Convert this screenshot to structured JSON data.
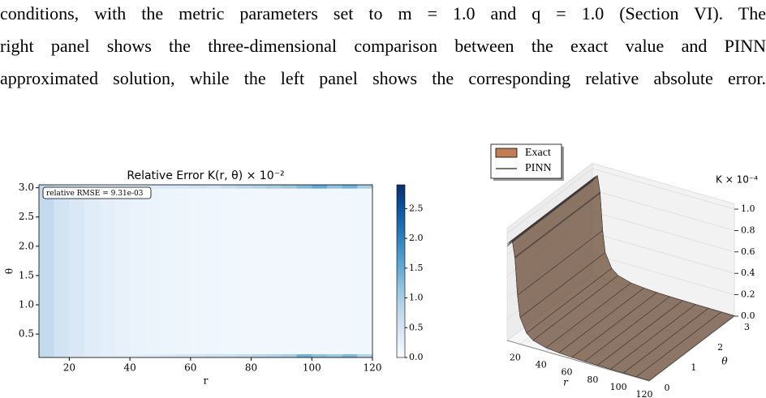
{
  "text": {
    "lines": [
      "conditions, with the metric parameters set to m = 1.0 and q = 1.0 (Section VI). The",
      "right panel shows the three-dimensional comparison between the exact value and PINN",
      "approximated solution, while the left panel shows the corresponding relative absolute error."
    ]
  },
  "chart_data": [
    {
      "type": "heatmap",
      "title": "Relative Error K(r, θ) × 10⁻²",
      "annotation": "relative RMSE = 9.31e-03",
      "xlabel": "r",
      "ylabel": "θ",
      "colormap": "Blues",
      "xlim": [
        10,
        120
      ],
      "ylim": [
        0.1,
        3.05
      ],
      "xticks": [
        20,
        40,
        60,
        80,
        100,
        120
      ],
      "yticks": [
        0.5,
        {
          "value": 1,
          "label": "1.0"
        },
        1.5,
        {
          "value": 2,
          "label": "2.0"
        },
        2.5,
        {
          "value": 3,
          "label": "3.0"
        }
      ],
      "clim": [
        0,
        2.9
      ],
      "cticks": [
        {
          "value": 0,
          "label": "0.0"
        },
        0.5,
        {
          "value": 1,
          "label": "1.0"
        },
        1.5,
        {
          "value": 2,
          "label": "2.0"
        },
        2.5
      ],
      "x_bins": [
        10,
        15,
        20,
        25,
        30,
        35,
        40,
        45,
        50,
        55,
        60,
        65,
        70,
        75,
        80,
        85,
        90,
        95,
        100,
        105,
        110,
        115,
        120
      ],
      "y_bins": [
        0.1,
        0.16,
        2.99,
        3.05
      ],
      "values": [
        [
          0.75,
          0.55,
          0.42,
          0.33,
          0.3,
          0.3,
          0.3,
          0.35,
          0.4,
          0.5,
          0.5,
          0.6,
          0.6,
          0.7,
          0.8,
          0.9,
          1.0,
          1.4,
          1.2,
          1.1,
          1.3,
          0.9
        ],
        [
          0.75,
          0.55,
          0.42,
          0.33,
          0.27,
          0.22,
          0.19,
          0.16,
          0.14,
          0.13,
          0.12,
          0.11,
          0.1,
          0.1,
          0.09,
          0.09,
          0.09,
          0.09,
          0.09,
          0.09,
          0.1,
          0.1
        ],
        [
          0.75,
          0.55,
          0.42,
          0.33,
          0.3,
          0.32,
          0.3,
          0.4,
          0.45,
          0.5,
          0.6,
          0.55,
          0.7,
          0.8,
          0.9,
          1.0,
          1.1,
          1.3,
          1.5,
          1.2,
          1.4,
          1.0
        ]
      ]
    },
    {
      "type": "surface3d",
      "xlabel": "r",
      "ylabel": "θ",
      "zlabel": "K × 10⁻⁴",
      "xlim": [
        10,
        120
      ],
      "ylim": [
        0,
        3.2
      ],
      "zlim": [
        0,
        1.05
      ],
      "xticks": [
        20,
        40,
        60,
        80,
        100,
        120
      ],
      "yticks": [
        0,
        1,
        2,
        3
      ],
      "zticks": [
        {
          "value": 0,
          "label": "0.0"
        },
        0.2,
        0.4,
        0.6,
        0.8,
        {
          "value": 1,
          "label": "1.0"
        }
      ],
      "x": [
        10,
        12,
        14,
        16,
        18,
        20,
        25,
        30,
        40,
        50,
        60,
        70,
        80,
        90,
        100,
        110,
        120
      ],
      "series": [
        {
          "name": "Exact",
          "color": "#c27e52",
          "values": [
            0.9,
            0.93,
            0.95,
            0.8,
            0.45,
            0.25,
            0.12,
            0.07,
            0.035,
            0.022,
            0.015,
            0.011,
            0.009,
            0.007,
            0.006,
            0.005,
            0.004
          ]
        },
        {
          "name": "PINN",
          "color": "#222222",
          "values": [
            0.88,
            0.92,
            0.94,
            0.79,
            0.45,
            0.25,
            0.12,
            0.07,
            0.035,
            0.022,
            0.015,
            0.011,
            0.009,
            0.007,
            0.006,
            0.005,
            0.004
          ]
        }
      ]
    }
  ]
}
